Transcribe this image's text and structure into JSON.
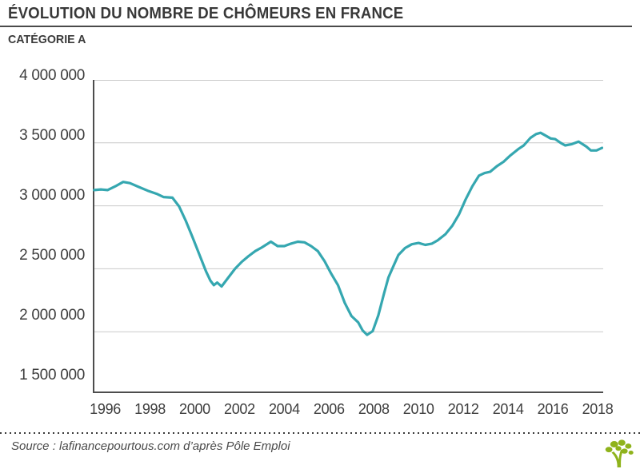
{
  "header": {
    "title": "ÉVOLUTION DU NOMBRE DE CHÔMEURS EN FRANCE",
    "subtitle": "CATÉGORIE A"
  },
  "footer": {
    "source": "Source : lafinancepourtous.com d’après Pôle Emploi",
    "logo_icon": "tree-logo"
  },
  "colors": {
    "line": "#35A7B0",
    "grid": "#C9C9C9",
    "axis": "#4D4D4D",
    "text": "#3A3A3A",
    "logo_green": "#8FB31C"
  },
  "chart_data": {
    "type": "line",
    "title": "ÉVOLUTION DU NOMBRE DE CHÔMEURS EN FRANCE",
    "subtitle": "CATÉGORIE A",
    "xlabel": "",
    "ylabel": "",
    "xlim": [
      1996,
      2018.7
    ],
    "ylim": [
      1513000,
      4000000
    ],
    "grid": "horizontal",
    "legend": "none",
    "x_tick_values": [
      1996,
      1998,
      2000,
      2002,
      2004,
      2006,
      2008,
      2010,
      2012,
      2014,
      2016,
      2018
    ],
    "x_tick_labels": [
      "1996",
      "1998",
      "2000",
      "2002",
      "2004",
      "2006",
      "2008",
      "2010",
      "2012",
      "2014",
      "2016",
      "2018"
    ],
    "y_tick_values": [
      4000000,
      3500000,
      3000000,
      2500000,
      2000000,
      1500000
    ],
    "y_tick_labels": [
      "4 000 000",
      "3 500 000",
      "3 000 000",
      "2 500 000",
      "2 000 000",
      "1 500 000"
    ],
    "y_gridline_values": [
      4000000,
      3500000,
      3000000,
      2500000,
      2000000
    ],
    "series": [
      {
        "name": "Catégorie A",
        "color": "#35A7B0",
        "points": [
          [
            1996.0,
            3125000
          ],
          [
            1996.3,
            3130000
          ],
          [
            1996.6,
            3125000
          ],
          [
            1997.0,
            3160000
          ],
          [
            1997.3,
            3190000
          ],
          [
            1997.6,
            3180000
          ],
          [
            1998.0,
            3150000
          ],
          [
            1998.4,
            3120000
          ],
          [
            1998.8,
            3095000
          ],
          [
            1999.1,
            3070000
          ],
          [
            1999.5,
            3065000
          ],
          [
            1999.8,
            2995000
          ],
          [
            2000.1,
            2880000
          ],
          [
            2000.4,
            2750000
          ],
          [
            2000.7,
            2615000
          ],
          [
            2001.0,
            2480000
          ],
          [
            2001.2,
            2405000
          ],
          [
            2001.35,
            2370000
          ],
          [
            2001.5,
            2390000
          ],
          [
            2001.7,
            2360000
          ],
          [
            2002.0,
            2430000
          ],
          [
            2002.3,
            2500000
          ],
          [
            2002.6,
            2555000
          ],
          [
            2002.9,
            2600000
          ],
          [
            2003.2,
            2640000
          ],
          [
            2003.5,
            2670000
          ],
          [
            2003.9,
            2715000
          ],
          [
            2004.2,
            2680000
          ],
          [
            2004.5,
            2680000
          ],
          [
            2004.8,
            2700000
          ],
          [
            2005.1,
            2715000
          ],
          [
            2005.4,
            2710000
          ],
          [
            2005.7,
            2680000
          ],
          [
            2006.0,
            2640000
          ],
          [
            2006.3,
            2560000
          ],
          [
            2006.6,
            2460000
          ],
          [
            2006.9,
            2370000
          ],
          [
            2007.2,
            2230000
          ],
          [
            2007.5,
            2125000
          ],
          [
            2007.8,
            2075000
          ],
          [
            2008.0,
            2010000
          ],
          [
            2008.2,
            1975000
          ],
          [
            2008.45,
            2005000
          ],
          [
            2008.7,
            2130000
          ],
          [
            2008.95,
            2300000
          ],
          [
            2009.15,
            2430000
          ],
          [
            2009.35,
            2510000
          ],
          [
            2009.6,
            2610000
          ],
          [
            2009.9,
            2665000
          ],
          [
            2010.2,
            2695000
          ],
          [
            2010.5,
            2705000
          ],
          [
            2010.8,
            2690000
          ],
          [
            2011.1,
            2700000
          ],
          [
            2011.35,
            2725000
          ],
          [
            2011.7,
            2775000
          ],
          [
            2012.0,
            2840000
          ],
          [
            2012.3,
            2930000
          ],
          [
            2012.6,
            3050000
          ],
          [
            2012.9,
            3155000
          ],
          [
            2013.2,
            3240000
          ],
          [
            2013.45,
            3260000
          ],
          [
            2013.7,
            3270000
          ],
          [
            2014.0,
            3315000
          ],
          [
            2014.3,
            3350000
          ],
          [
            2014.6,
            3400000
          ],
          [
            2014.95,
            3450000
          ],
          [
            2015.2,
            3480000
          ],
          [
            2015.5,
            3540000
          ],
          [
            2015.75,
            3570000
          ],
          [
            2015.95,
            3580000
          ],
          [
            2016.15,
            3560000
          ],
          [
            2016.4,
            3535000
          ],
          [
            2016.6,
            3530000
          ],
          [
            2016.85,
            3500000
          ],
          [
            2017.05,
            3480000
          ],
          [
            2017.35,
            3490000
          ],
          [
            2017.65,
            3510000
          ],
          [
            2018.0,
            3470000
          ],
          [
            2018.2,
            3440000
          ],
          [
            2018.45,
            3440000
          ],
          [
            2018.7,
            3460000
          ]
        ]
      }
    ]
  }
}
